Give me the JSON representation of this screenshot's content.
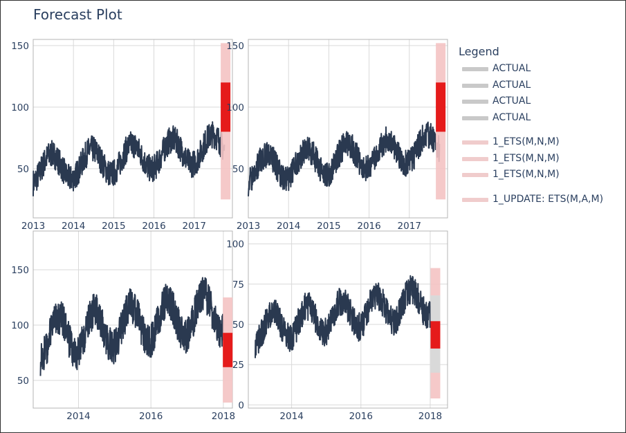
{
  "title": "Forecast Plot",
  "colors": {
    "actual": "#2a3950",
    "forecast": "#e51b1b",
    "forecast_band": "#f4c3c3",
    "grey_band": "#d9d9d9",
    "grid": "#d9d9d9",
    "axis": "#b4b4b4",
    "text": "#2a3f5f"
  },
  "legend": {
    "title": "Legend",
    "groups": [
      [
        {
          "label": "ACTUAL",
          "color": "#c9c9c9"
        },
        {
          "label": "ACTUAL",
          "color": "#c9c9c9"
        },
        {
          "label": "ACTUAL",
          "color": "#c9c9c9"
        },
        {
          "label": "ACTUAL",
          "color": "#c9c9c9"
        }
      ],
      [
        {
          "label": "1_ETS(M,N,M)",
          "color": "#f0cccc"
        },
        {
          "label": "1_ETS(M,N,M)",
          "color": "#f0cccc"
        },
        {
          "label": "1_ETS(M,N,M)",
          "color": "#f0cccc"
        }
      ],
      [
        {
          "label": "1_UPDATE: ETS(M,A,M)",
          "color": "#f0cccc"
        }
      ]
    ]
  },
  "chart_data": [
    {
      "type": "line",
      "panel": "top-left",
      "x_range": [
        2013.0,
        2017.95
      ],
      "ylim": [
        10,
        155
      ],
      "xticks": [
        2013,
        2014,
        2015,
        2016,
        2017
      ],
      "xtick_labels": [
        "2013",
        "2014",
        "2015",
        "2016",
        "2017"
      ],
      "yticks": [
        50,
        100,
        150
      ],
      "ytick_labels": [
        "50",
        "100",
        "150"
      ],
      "series": [
        {
          "kind": "actual",
          "x_start": 2013.0,
          "x_end": 2017.75,
          "base": 38,
          "amp": 22,
          "trend": 4,
          "noise": 11,
          "peak_phase": 0.45
        },
        {
          "kind": "forecast_band",
          "x": 2017.78,
          "low": 25,
          "high": 152
        },
        {
          "kind": "forecast_core",
          "x": 2017.78,
          "low": 80,
          "high": 120
        }
      ]
    },
    {
      "type": "line",
      "panel": "top-right",
      "x_range": [
        2013.0,
        2017.95
      ],
      "ylim": [
        10,
        155
      ],
      "xticks": [
        2013,
        2014,
        2015,
        2016,
        2017
      ],
      "xtick_labels": [
        "2013",
        "2014",
        "2015",
        "2016",
        "2017"
      ],
      "yticks": [
        50,
        100,
        150
      ],
      "ytick_labels": [
        "50",
        "100",
        "150"
      ],
      "series": [
        {
          "kind": "actual",
          "x_start": 2013.0,
          "x_end": 2017.75,
          "base": 38,
          "amp": 22,
          "trend": 4,
          "noise": 11,
          "peak_phase": 0.45
        },
        {
          "kind": "forecast_band",
          "x": 2017.78,
          "low": 25,
          "high": 152
        },
        {
          "kind": "forecast_core",
          "x": 2017.78,
          "low": 80,
          "high": 120
        }
      ]
    },
    {
      "type": "line",
      "panel": "bottom-left",
      "x_range": [
        2012.75,
        2018.25
      ],
      "ylim": [
        25,
        185
      ],
      "xticks": [
        2014,
        2016,
        2018
      ],
      "xtick_labels": [
        "2014",
        "2016",
        "2018"
      ],
      "yticks": [
        50,
        100,
        150
      ],
      "ytick_labels": [
        "50",
        "100",
        "150"
      ],
      "series": [
        {
          "kind": "actual",
          "x_start": 2012.95,
          "x_end": 2018.0,
          "base": 70,
          "amp": 35,
          "trend": 5,
          "noise": 16,
          "peak_phase": 0.45
        },
        {
          "kind": "forecast_band",
          "x": 2018.12,
          "low": 30,
          "high": 125
        },
        {
          "kind": "forecast_core",
          "x": 2018.12,
          "low": 62,
          "high": 93
        }
      ]
    },
    {
      "type": "line",
      "panel": "bottom-right",
      "x_range": [
        2012.75,
        2018.5
      ],
      "ylim": [
        -2,
        108
      ],
      "xticks": [
        2014,
        2016,
        2018
      ],
      "xtick_labels": [
        "2014",
        "2016",
        "2018"
      ],
      "yticks": [
        0,
        25,
        50,
        75,
        100
      ],
      "ytick_labels": [
        "0",
        "25",
        "50",
        "75",
        "100"
      ],
      "series": [
        {
          "kind": "actual",
          "x_start": 2012.95,
          "x_end": 2018.0,
          "base": 38,
          "amp": 18,
          "trend": 3.5,
          "noise": 9,
          "peak_phase": 0.45
        },
        {
          "kind": "forecast_band",
          "x": 2018.15,
          "low": 4,
          "high": 85
        },
        {
          "kind": "grey_band",
          "x": 2018.15,
          "low": 20,
          "high": 68
        },
        {
          "kind": "forecast_core",
          "x": 2018.15,
          "low": 35,
          "high": 52
        }
      ]
    }
  ]
}
